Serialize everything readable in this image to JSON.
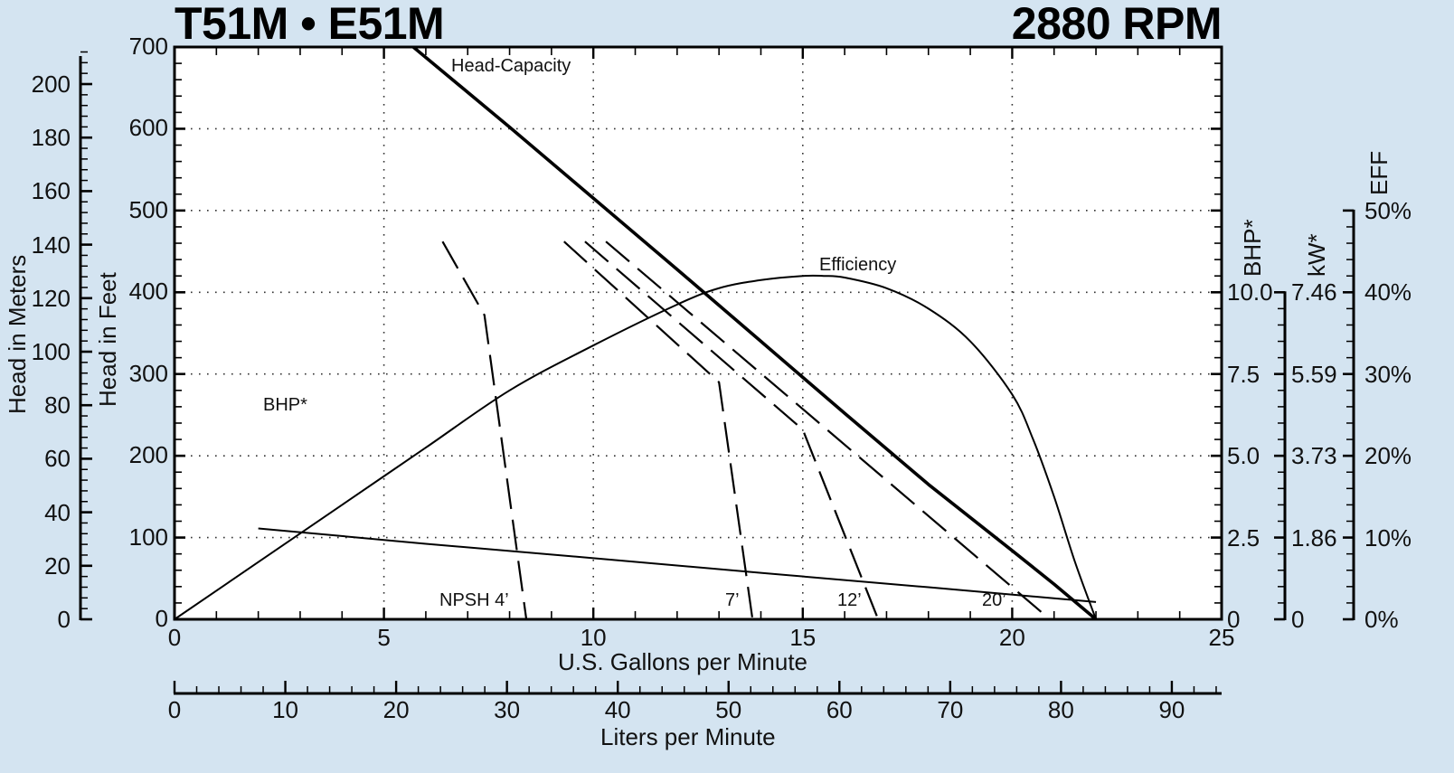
{
  "header": {
    "model_title": "T51M • E51M",
    "speed_title": "2880 RPM"
  },
  "axes": {
    "meters_title": "Head in Meters",
    "feet_title": "Head in Feet",
    "gpm_title": "U.S. Gallons per Minute",
    "lpm_title": "Liters per Minute",
    "bhp_title": "BHP*",
    "kw_title": "kW*",
    "eff_title": "EFF",
    "meters_ticks": [
      "0",
      "20",
      "40",
      "60",
      "80",
      "100",
      "120",
      "140",
      "160",
      "180",
      "200"
    ],
    "feet_ticks": [
      "0",
      "100",
      "200",
      "300",
      "400",
      "500",
      "600",
      "700"
    ],
    "gpm_ticks": [
      "0",
      "5",
      "10",
      "15",
      "20",
      "25"
    ],
    "lpm_ticks": [
      "0",
      "10",
      "20",
      "30",
      "40",
      "50",
      "60",
      "70",
      "80",
      "90"
    ],
    "bhp_ticks": [
      "0",
      "2.5",
      "5.0",
      "7.5",
      "10.0"
    ],
    "kw_ticks": [
      "0",
      "1.86",
      "3.73",
      "5.59",
      "7.46"
    ],
    "eff_ticks": [
      "0%",
      "10%",
      "20%",
      "30%",
      "40%",
      "50%"
    ]
  },
  "labels": {
    "head_capacity": "Head-Capacity",
    "efficiency": "Efficiency",
    "bhp": "BHP*",
    "npsh4": "NPSH 4’",
    "npsh7": "7’",
    "npsh12": "12’",
    "npsh20": "20’"
  },
  "chart_data": {
    "type": "line",
    "title": "T51M • E51M",
    "subtitle": "2880 RPM",
    "xlabel": "U.S. Gallons per Minute",
    "xlabel_secondary": "Liters per Minute",
    "ylabel": "Head in Feet",
    "ylabel_secondary": "Head in Meters",
    "ylabel_right": [
      "BHP*",
      "kW*",
      "EFF"
    ],
    "xlim": [
      0,
      25
    ],
    "ylim": [
      0,
      700
    ],
    "xlim_lpm": [
      0,
      94.6
    ],
    "ylim_meters": [
      0,
      213
    ],
    "right_axes": {
      "bhp_range": [
        0,
        10.0
      ],
      "kw_range": [
        0,
        7.46
      ],
      "eff_range_pct": [
        0,
        50
      ]
    },
    "grid": true,
    "series": [
      {
        "name": "Head-Capacity",
        "axis": "feet",
        "style": "solid-thick",
        "x": [
          5.7,
          8,
          10,
          12,
          14,
          16,
          18,
          20,
          21,
          22
        ],
        "y": [
          700,
          602,
          515,
          428,
          340,
          252,
          165,
          84,
          43,
          0
        ]
      },
      {
        "name": "Efficiency",
        "axis": "eff_pct",
        "style": "solid",
        "x": [
          0,
          2,
          4,
          6,
          8,
          10,
          12,
          13,
          14,
          15,
          15.5,
          16,
          17,
          18,
          19,
          20,
          20.5,
          21,
          21.5,
          22
        ],
        "y": [
          0,
          7,
          14,
          21,
          28,
          33.5,
          38.5,
          40.5,
          41.5,
          42,
          42,
          41.8,
          40.5,
          38,
          34,
          27.5,
          22,
          15,
          7,
          0
        ]
      },
      {
        "name": "BHP*",
        "axis": "bhp",
        "style": "solid",
        "x": [
          2,
          6,
          10,
          14,
          18,
          22
        ],
        "y": [
          2.78,
          2.31,
          1.87,
          1.42,
          0.98,
          0.53
        ]
      },
      {
        "name": "NPSH 4'",
        "axis": "feet",
        "style": "dashed",
        "x": [
          6.4,
          7.4,
          8.4
        ],
        "y": [
          462,
          372,
          0
        ]
      },
      {
        "name": "NPSH 7'",
        "axis": "feet",
        "style": "dashed",
        "x": [
          9.3,
          13.0,
          13.8
        ],
        "y": [
          462,
          290,
          0
        ]
      },
      {
        "name": "NPSH 12'",
        "axis": "feet",
        "style": "dashed",
        "x": [
          9.8,
          15.0,
          16.8
        ],
        "y": [
          462,
          232,
          0
        ]
      },
      {
        "name": "NPSH 20'",
        "axis": "feet",
        "style": "dashed",
        "x": [
          10.3,
          20.9
        ],
        "y": [
          462,
          0
        ]
      }
    ]
  }
}
